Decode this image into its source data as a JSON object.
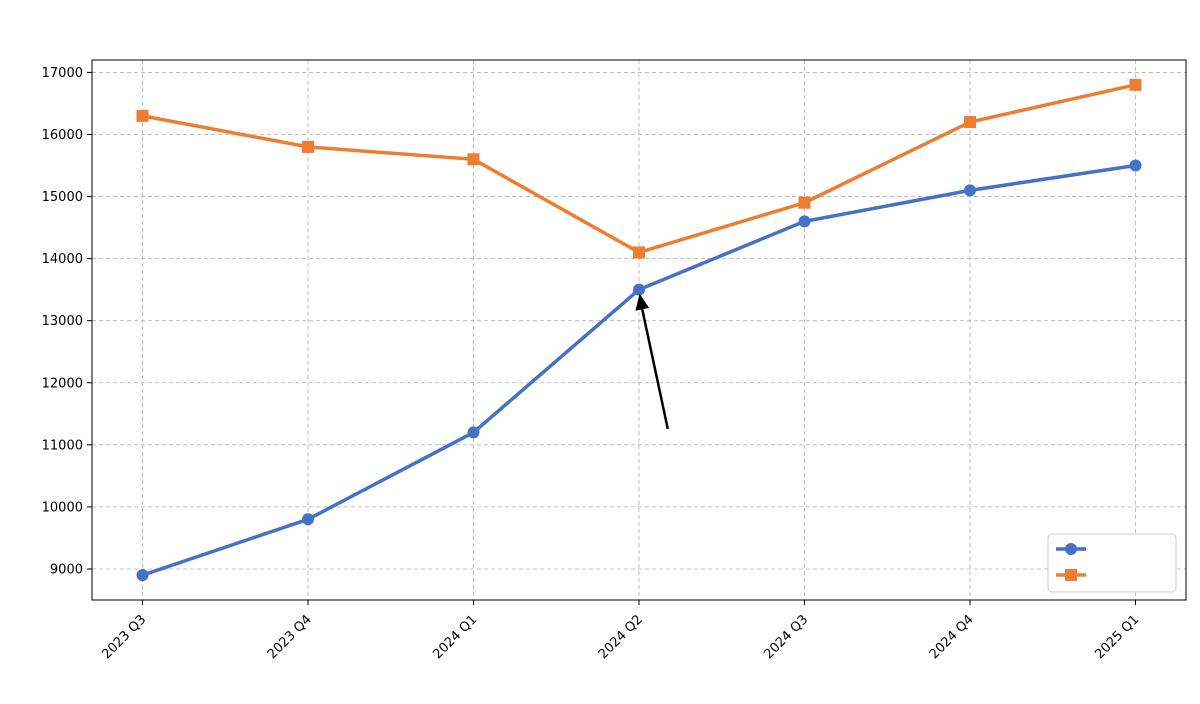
{
  "chart_data": {
    "type": "line",
    "title": "",
    "xlabel": "",
    "ylabel": "",
    "categories": [
      "2023 Q3",
      "2023 Q4",
      "2024 Q1",
      "2024 Q2",
      "2024 Q3",
      "2024 Q4",
      "2025 Q1"
    ],
    "series": [
      {
        "name": "",
        "color": "#4472c4",
        "marker": "circle",
        "values": [
          8900,
          9800,
          11200,
          13500,
          14600,
          15100,
          15500
        ]
      },
      {
        "name": "",
        "color": "#ed7d31",
        "marker": "square",
        "values": [
          16300,
          15800,
          15600,
          14100,
          14900,
          16200,
          16800
        ]
      }
    ],
    "ylim": [
      8500,
      17200
    ],
    "yticks": [
      9000,
      10000,
      11000,
      12000,
      13000,
      14000,
      15000,
      16000,
      17000
    ],
    "grid": true,
    "legend_position": "bottom-right",
    "annotation": {
      "text": "",
      "target_category": "2024 Q2",
      "target_value": 13500,
      "text_category_index": 3.18,
      "text_value": 11000
    }
  }
}
